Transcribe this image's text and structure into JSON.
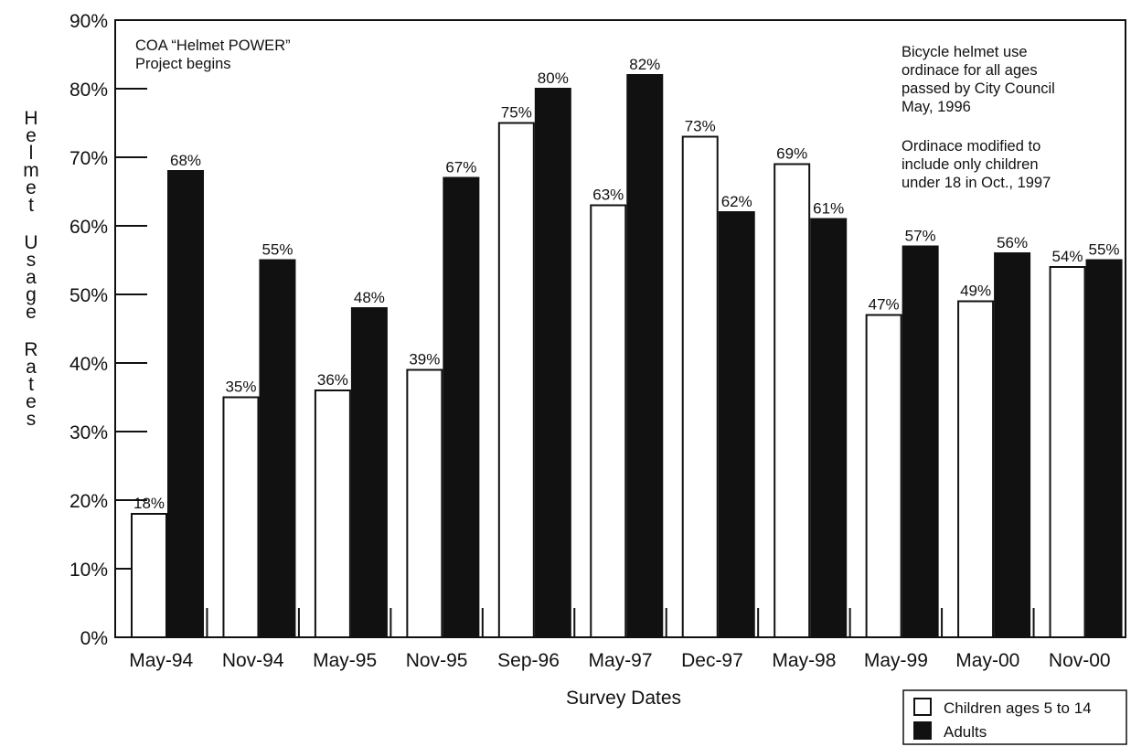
{
  "chart_data": {
    "type": "bar",
    "title": "",
    "xlabel": "Survey Dates",
    "ylabel": "Helmet Usage Rates",
    "ylim": [
      0,
      90
    ],
    "y_ticks": [
      "0%",
      "10%",
      "20%",
      "30%",
      "40%",
      "50%",
      "60%",
      "70%",
      "80%",
      "90%"
    ],
    "categories": [
      "May-94",
      "Nov-94",
      "May-95",
      "Nov-95",
      "Sep-96",
      "May-97",
      "Dec-97",
      "May-98",
      "May-99",
      "May-00",
      "Nov-00"
    ],
    "series": [
      {
        "name": "Children ages 5 to 14",
        "color": "#ffffff",
        "values": [
          18,
          35,
          36,
          39,
          75,
          63,
          73,
          69,
          47,
          49,
          54
        ],
        "labels": [
          "18%",
          "35%",
          "36%",
          "39%",
          "75%",
          "63%",
          "73%",
          "69%",
          "47%",
          "49%",
          "54%"
        ]
      },
      {
        "name": "Adults",
        "color": "#111111",
        "values": [
          68,
          55,
          48,
          67,
          80,
          82,
          62,
          61,
          57,
          56,
          55
        ],
        "labels": [
          "68%",
          "55%",
          "48%",
          "67%",
          "80%",
          "82%",
          "62%",
          "61%",
          "57%",
          "56%",
          "55%"
        ]
      }
    ],
    "annotations": {
      "project": [
        "COA “Helmet POWER”",
        "Project begins"
      ],
      "ordinance": [
        "Bicycle helmet use",
        "ordinace for all ages",
        "passed by City Council",
        "May, 1996"
      ],
      "modified": [
        "Ordinace modified to",
        "include only children",
        "under 18 in Oct., 1997"
      ]
    },
    "legend_position": "bottom-right",
    "grid": false
  }
}
